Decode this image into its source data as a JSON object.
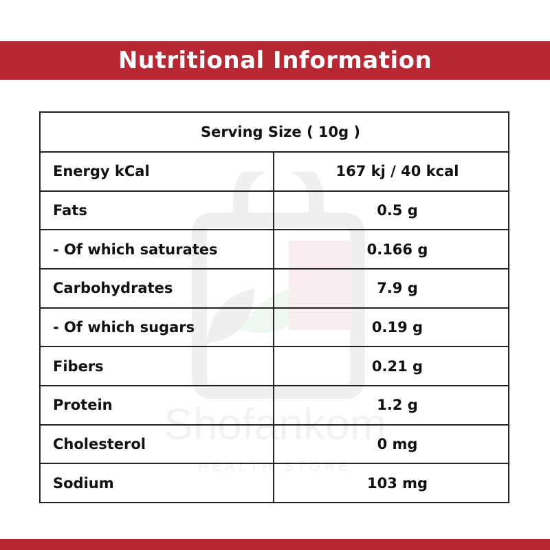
{
  "header": {
    "title": "Nutritional Information"
  },
  "serving": {
    "label": "Serving Size ( 10g )"
  },
  "rows": [
    {
      "label": "Energy kCal",
      "value": "167 kj / 40 kcal"
    },
    {
      "label": "Fats",
      "value": "0.5 g"
    },
    {
      "label": "- Of which saturates",
      "value": "0.166 g"
    },
    {
      "label": "Carbohydrates",
      "value": "7.9 g"
    },
    {
      "label": "- Of which sugars",
      "value": "0.19 g"
    },
    {
      "label": "Fibers",
      "value": "0.21 g"
    },
    {
      "label": "Protein",
      "value": "1.2 g"
    },
    {
      "label": "Cholesterol",
      "value": "0 mg"
    },
    {
      "label": "Sodium",
      "value": "103 mg"
    }
  ],
  "watermark": {
    "brand": "Shofankom",
    "tagline": "HEALTH STORE"
  },
  "colors": {
    "accent": "#b92732",
    "serving_text": "#d4141c"
  }
}
